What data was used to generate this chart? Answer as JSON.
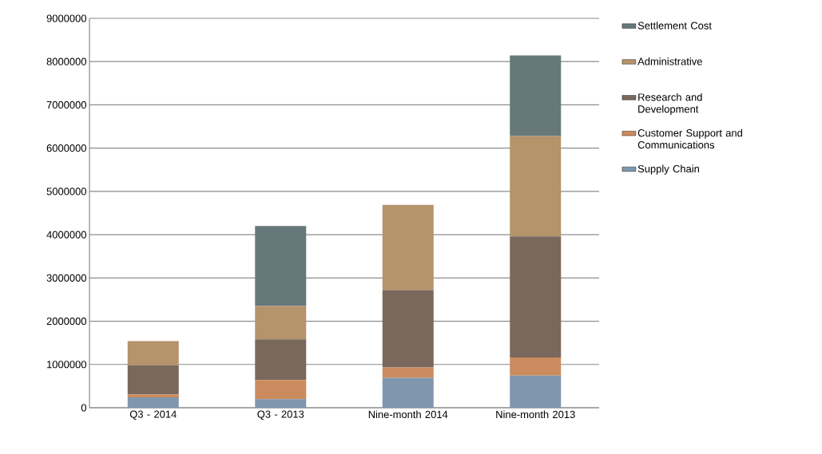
{
  "chart_data": {
    "type": "bar",
    "stacked": true,
    "categories": [
      "Q3 - 2014",
      "Q3 - 2013",
      "Nine-month 2014",
      "Nine-month 2013"
    ],
    "series": [
      {
        "name": "Supply Chain",
        "color": "#7f96ae",
        "values": [
          240000,
          200000,
          690000,
          740000
        ]
      },
      {
        "name": "Customer Support and Communications",
        "color": "#cc8b5e",
        "values": [
          70000,
          440000,
          240000,
          420000
        ]
      },
      {
        "name": "Research and Development",
        "color": "#7a685c",
        "values": [
          670000,
          940000,
          1790000,
          2800000
        ]
      },
      {
        "name": "Administrative",
        "color": "#b5936b",
        "values": [
          560000,
          770000,
          1970000,
          2320000
        ]
      },
      {
        "name": "Settlement Cost",
        "color": "#66787a",
        "values": [
          0,
          1850000,
          0,
          1860000
        ]
      }
    ],
    "ylim": [
      0,
      9000000
    ],
    "yticks": [
      0,
      1000000,
      2000000,
      3000000,
      4000000,
      5000000,
      6000000,
      7000000,
      8000000,
      9000000
    ],
    "grid": "y",
    "legend": "right"
  }
}
